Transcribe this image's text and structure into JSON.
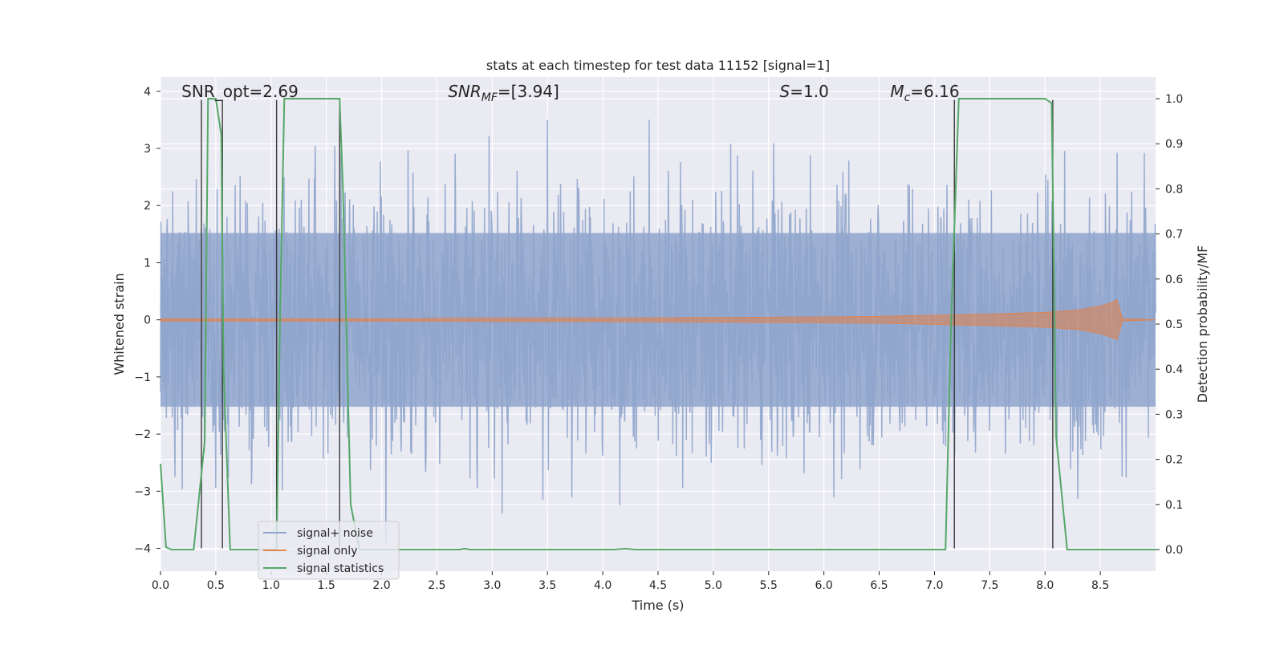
{
  "chart_data": {
    "type": "line",
    "title": "stats at each timestep for test data 11152 [signal=1]",
    "xlabel": "Time (s)",
    "ylabel_left": "Whitened strain",
    "ylabel_right": "Detection probability/MF",
    "xlim": [
      0.0,
      9.0
    ],
    "ylim_left": [
      -4.4,
      4.25
    ],
    "ylim_right": [
      -0.048,
      1.048
    ],
    "grid": true,
    "legend_position": "lower-left",
    "x_ticks": [
      0.0,
      0.5,
      1.0,
      1.5,
      2.0,
      2.5,
      3.0,
      3.5,
      4.0,
      4.5,
      5.0,
      5.5,
      6.0,
      6.5,
      7.0,
      7.5,
      8.0,
      8.5
    ],
    "x_tick_labels": [
      "0.0",
      "0.5",
      "1.0",
      "1.5",
      "2.0",
      "2.5",
      "3.0",
      "3.5",
      "4.0",
      "4.5",
      "5.0",
      "5.5",
      "6.0",
      "6.5",
      "7.0",
      "7.5",
      "8.0",
      "8.5"
    ],
    "y_left_ticks": [
      -4,
      -3,
      -2,
      -1,
      0,
      1,
      2,
      3,
      4
    ],
    "y_left_tick_labels": [
      "−4",
      "−3",
      "−2",
      "−1",
      "0",
      "1",
      "2",
      "3",
      "4"
    ],
    "y_right_ticks": [
      0.0,
      0.1,
      0.2,
      0.3,
      0.4,
      0.5,
      0.6,
      0.7,
      0.8,
      0.9,
      1.0
    ],
    "y_right_tick_labels": [
      "0.0",
      "0.1",
      "0.2",
      "0.3",
      "0.4",
      "0.5",
      "0.6",
      "0.7",
      "0.8",
      "0.9",
      "1.0"
    ],
    "annotations": [
      {
        "text": "SNR_opt=2.69",
        "x": 0.19,
        "y": 3.9
      },
      {
        "text": "SNR_MF=[3.94]",
        "x": 2.6,
        "y": 3.9
      },
      {
        "text": "S=1.0",
        "x": 5.6,
        "y": 3.9
      },
      {
        "text": "M_c=6.16",
        "x": 6.6,
        "y": 3.9
      }
    ],
    "series": [
      {
        "name": "signal+ noise",
        "color": "#8fa5cc",
        "axis": "left",
        "envelope": {
          "x_range": [
            0.0,
            9.0
          ],
          "typical_amplitude": 1.6,
          "peak_max": 3.5,
          "peak_min": -3.95
        }
      },
      {
        "name": "signal only",
        "color": "#dd8452",
        "axis": "left",
        "envelope": {
          "x": [
            0.0,
            1.0,
            2.0,
            3.0,
            4.0,
            5.0,
            6.0,
            6.5,
            7.0,
            7.5,
            8.0,
            8.3,
            8.5,
            8.6,
            8.65,
            8.7,
            9.0
          ],
          "amplitude": [
            0.02,
            0.02,
            0.02,
            0.03,
            0.03,
            0.04,
            0.05,
            0.06,
            0.08,
            0.1,
            0.13,
            0.17,
            0.24,
            0.3,
            0.35,
            0.02,
            0.0
          ]
        }
      },
      {
        "name": "signal statistics",
        "color": "#55a868",
        "axis": "right",
        "x": [
          0.0,
          0.05,
          0.1,
          0.3,
          0.4,
          0.43,
          0.5,
          0.55,
          0.57,
          0.63,
          1.0,
          1.05,
          1.08,
          1.12,
          1.15,
          1.62,
          1.65,
          1.72,
          1.8,
          2.7,
          2.75,
          2.8,
          4.1,
          4.2,
          4.3,
          7.1,
          7.15,
          7.22,
          7.25,
          8.0,
          8.06,
          8.1,
          8.2,
          8.25,
          9.0
        ],
        "y": [
          0.19,
          0.005,
          0.0,
          0.0,
          0.24,
          1.0,
          1.0,
          0.92,
          0.4,
          0.0,
          0.0,
          0.0,
          0.5,
          1.0,
          1.0,
          1.0,
          0.8,
          0.1,
          0.0,
          0.0,
          0.002,
          0.0,
          0.0,
          0.002,
          0.0,
          0.0,
          0.5,
          1.0,
          1.0,
          1.0,
          0.99,
          0.25,
          0.0,
          0.0,
          0.0
        ]
      }
    ],
    "markers": {
      "color": "#3a3a3a",
      "x": [
        0.37,
        0.56,
        1.05,
        1.62,
        7.18,
        8.07
      ],
      "y_top": [
        3.85,
        3.85,
        3.85,
        3.85,
        3.85,
        3.85
      ],
      "y_bottom": [
        -4.0,
        -4.0,
        -4.0,
        -4.0,
        -4.0,
        -4.0
      ]
    }
  }
}
